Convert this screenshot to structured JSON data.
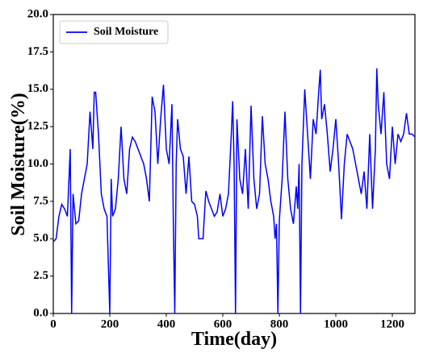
{
  "chart_data": {
    "type": "line",
    "xlabel": "Time(day)",
    "ylabel": "Soil Moisture(%)",
    "legend": "upper left",
    "xlim": [
      0,
      1280
    ],
    "xticks": [
      0,
      200,
      400,
      600,
      800,
      1000,
      1200
    ],
    "ylim": [
      0,
      20
    ],
    "yticks": [
      {
        "value": 0,
        "label": "0.0"
      },
      2.5,
      {
        "value": 5,
        "label": "5.0"
      },
      7.5,
      {
        "value": 10,
        "label": "10.0"
      },
      12.5,
      {
        "value": 15,
        "label": "15.0"
      },
      17.5,
      {
        "value": 20,
        "label": "20.0"
      }
    ],
    "x": [
      0,
      10,
      20,
      30,
      40,
      50,
      60,
      65,
      70,
      80,
      90,
      100,
      110,
      120,
      130,
      140,
      145,
      150,
      160,
      170,
      180,
      190,
      200,
      205,
      210,
      220,
      230,
      240,
      250,
      260,
      270,
      280,
      290,
      300,
      310,
      320,
      330,
      340,
      350,
      360,
      370,
      380,
      390,
      400,
      410,
      420,
      425,
      430,
      435,
      440,
      450,
      460,
      470,
      480,
      490,
      500,
      510,
      515,
      530,
      540,
      550,
      560,
      570,
      580,
      590,
      600,
      610,
      620,
      630,
      635,
      640,
      645,
      650,
      660,
      670,
      680,
      690,
      700,
      710,
      720,
      730,
      740,
      750,
      760,
      770,
      780,
      785,
      790,
      795,
      800,
      810,
      820,
      830,
      840,
      850,
      860,
      865,
      870,
      875,
      880,
      890,
      900,
      910,
      920,
      930,
      940,
      945,
      950,
      960,
      970,
      980,
      990,
      1000,
      1010,
      1020,
      1030,
      1040,
      1050,
      1060,
      1070,
      1080,
      1090,
      1100,
      1110,
      1120,
      1130,
      1140,
      1145,
      1150,
      1160,
      1170,
      1180,
      1190,
      1200,
      1210,
      1220,
      1230,
      1240,
      1250,
      1260,
      1270,
      1280
    ],
    "series": [
      {
        "name": "Soil Moisture",
        "color": "#0000ff",
        "values": [
          4.8,
          5,
          6.5,
          7.3,
          7,
          6.5,
          11,
          0,
          8,
          6,
          6.2,
          8,
          9,
          10,
          13.5,
          11,
          14.8,
          14.8,
          12,
          8,
          7,
          6.5,
          0,
          9,
          6.5,
          7,
          9,
          12.5,
          9,
          8,
          11,
          11.8,
          11.5,
          11,
          10.5,
          10,
          9,
          7.5,
          14.5,
          13.5,
          10,
          13,
          15.3,
          11,
          10,
          14,
          6,
          0,
          10,
          13,
          11,
          10.5,
          8,
          10.5,
          7.5,
          7.3,
          6.5,
          5,
          5,
          8.2,
          7.5,
          7,
          6.5,
          6.8,
          8,
          6.5,
          7,
          8,
          12,
          14.2,
          10,
          0,
          13,
          9,
          8,
          11,
          7,
          13.9,
          9,
          7,
          8,
          13.2,
          10,
          9,
          7.5,
          6.5,
          5,
          6,
          0,
          6.2,
          9,
          13.5,
          9,
          7,
          6,
          8.5,
          7,
          10,
          0,
          10,
          15,
          12,
          9,
          13,
          12,
          15,
          16.3,
          13,
          14,
          12,
          9.5,
          11,
          13,
          10,
          6.3,
          10,
          12,
          11.5,
          11,
          10,
          9,
          8,
          9.5,
          7,
          12,
          7,
          11,
          16.4,
          14,
          12,
          14.8,
          10,
          9,
          12.5,
          10,
          12,
          11.5,
          12,
          13.4,
          12,
          12,
          11.8
        ]
      }
    ]
  }
}
